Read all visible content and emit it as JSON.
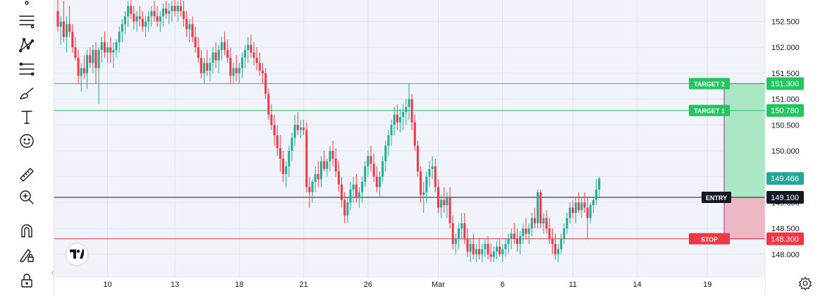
{
  "chart_data": {
    "type": "candlestick",
    "instrument_note": "",
    "price_axis": {
      "range": [
        147.8,
        152.75
      ],
      "ticks": [
        148.0,
        148.5,
        149.0,
        149.5,
        150.0,
        150.5,
        151.0,
        151.5,
        152.0,
        152.5
      ],
      "tick_labels": [
        "148.000",
        "148.500",
        "149.000",
        "149.500",
        "150.000",
        "150.500",
        "151.000",
        "151.500",
        "152.000",
        "152.500"
      ]
    },
    "time_axis": {
      "tick_labels": [
        "10",
        "13",
        "18",
        "21",
        "26",
        "Mar",
        "6",
        "11",
        "14",
        "19"
      ],
      "tick_bar_index": [
        17,
        40,
        62,
        84,
        106,
        130,
        152,
        176,
        198,
        222
      ]
    },
    "grid": true,
    "colors": {
      "up": "#22ab94",
      "down": "#f23645",
      "entry": "#131722",
      "stop": "#f23645",
      "target": "#22c55e",
      "profit_zone": "#a5e6c1",
      "loss_zone": "#eab3bf",
      "position_border": "#9c27b0",
      "current_price": "#26a69a"
    },
    "levels": [
      {
        "name": "TARGET 2",
        "price": 151.3,
        "price_label": "151.300",
        "kind": "target"
      },
      {
        "name": "TARGET 1",
        "price": 150.78,
        "price_label": "150.780",
        "kind": "target"
      },
      {
        "name": "ENTRY",
        "price": 149.1,
        "price_label": "149.100",
        "kind": "entry"
      },
      {
        "name": "STOP",
        "price": 148.3,
        "price_label": "148.300",
        "kind": "stop"
      }
    ],
    "current_price": {
      "price": 149.466,
      "label": "149.466"
    },
    "ohlc": [
      [
        152.7,
        152.95,
        152.3,
        152.4
      ],
      [
        152.4,
        152.6,
        152.05,
        152.5
      ],
      [
        152.5,
        152.9,
        152.1,
        152.2
      ],
      [
        152.2,
        152.6,
        151.9,
        152.45
      ],
      [
        152.45,
        152.8,
        152.2,
        152.3
      ],
      [
        152.3,
        152.45,
        151.9,
        152.0
      ],
      [
        152.0,
        152.2,
        151.75,
        151.8
      ],
      [
        151.8,
        151.95,
        151.3,
        151.45
      ],
      [
        151.45,
        151.7,
        151.15,
        151.6
      ],
      [
        151.6,
        151.85,
        151.4,
        151.5
      ],
      [
        151.5,
        151.95,
        151.2,
        151.85
      ],
      [
        151.85,
        152.0,
        151.6,
        151.7
      ],
      [
        151.7,
        152.05,
        151.5,
        151.95
      ],
      [
        151.95,
        152.1,
        151.3,
        151.6
      ],
      [
        151.6,
        152.0,
        150.9,
        151.95
      ],
      [
        151.95,
        152.2,
        151.7,
        152.1
      ],
      [
        152.1,
        152.3,
        151.8,
        151.9
      ],
      [
        151.9,
        152.1,
        151.7,
        152.0
      ],
      [
        152.0,
        152.2,
        151.7,
        151.9
      ],
      [
        151.9,
        152.1,
        151.6,
        151.95
      ],
      [
        151.95,
        152.15,
        151.8,
        152.1
      ],
      [
        152.1,
        152.4,
        151.9,
        152.3
      ],
      [
        152.3,
        152.55,
        152.1,
        152.45
      ],
      [
        152.45,
        152.7,
        152.25,
        152.6
      ],
      [
        152.6,
        152.9,
        152.4,
        152.8
      ],
      [
        152.8,
        152.95,
        152.55,
        152.65
      ],
      [
        152.65,
        152.8,
        152.35,
        152.5
      ],
      [
        152.5,
        152.7,
        152.3,
        152.6
      ],
      [
        152.6,
        152.8,
        152.4,
        152.55
      ],
      [
        152.55,
        152.7,
        152.3,
        152.4
      ],
      [
        152.4,
        152.6,
        152.2,
        152.5
      ],
      [
        152.5,
        152.7,
        152.3,
        152.6
      ],
      [
        152.6,
        152.8,
        152.4,
        152.7
      ],
      [
        152.7,
        152.9,
        152.5,
        152.6
      ],
      [
        152.6,
        152.8,
        152.4,
        152.5
      ],
      [
        152.5,
        152.7,
        152.3,
        152.6
      ],
      [
        152.6,
        152.85,
        152.4,
        152.75
      ],
      [
        152.75,
        152.9,
        152.55,
        152.65
      ],
      [
        152.65,
        152.85,
        152.45,
        152.7
      ],
      [
        152.7,
        152.9,
        152.5,
        152.8
      ],
      [
        152.8,
        152.95,
        152.6,
        152.7
      ],
      [
        152.7,
        152.9,
        152.5,
        152.8
      ],
      [
        152.8,
        152.95,
        152.6,
        152.7
      ],
      [
        152.7,
        152.9,
        152.4,
        152.55
      ],
      [
        152.55,
        152.7,
        152.2,
        152.35
      ],
      [
        152.35,
        152.55,
        152.1,
        152.45
      ],
      [
        152.45,
        152.6,
        152.1,
        152.2
      ],
      [
        152.2,
        152.4,
        151.9,
        152.0
      ],
      [
        152.0,
        152.2,
        151.7,
        151.8
      ],
      [
        151.8,
        151.95,
        151.4,
        151.5
      ],
      [
        151.5,
        151.8,
        151.3,
        151.7
      ],
      [
        151.7,
        151.95,
        151.45,
        151.55
      ],
      [
        151.55,
        151.8,
        151.35,
        151.7
      ],
      [
        151.7,
        152.0,
        151.5,
        151.9
      ],
      [
        151.9,
        152.1,
        151.6,
        151.75
      ],
      [
        151.75,
        152.05,
        151.5,
        151.95
      ],
      [
        151.95,
        152.2,
        151.75,
        152.1
      ],
      [
        152.1,
        152.3,
        151.85,
        151.95
      ],
      [
        151.95,
        152.15,
        151.7,
        151.8
      ],
      [
        151.8,
        152.0,
        151.3,
        151.45
      ],
      [
        151.45,
        151.7,
        151.3,
        151.6
      ],
      [
        151.6,
        151.85,
        151.35,
        151.5
      ],
      [
        151.5,
        151.7,
        151.3,
        151.6
      ],
      [
        151.6,
        151.9,
        151.4,
        151.8
      ],
      [
        151.8,
        152.05,
        151.6,
        151.95
      ],
      [
        151.95,
        152.2,
        151.7,
        152.05
      ],
      [
        152.05,
        152.25,
        151.8,
        151.9
      ],
      [
        151.9,
        152.1,
        151.65,
        151.8
      ],
      [
        151.8,
        152.0,
        151.55,
        151.7
      ],
      [
        151.7,
        151.9,
        151.45,
        151.55
      ],
      [
        151.55,
        151.7,
        151.3,
        151.5
      ],
      [
        151.5,
        151.6,
        151.0,
        151.1
      ],
      [
        151.1,
        151.2,
        150.6,
        150.7
      ],
      [
        150.7,
        150.9,
        150.4,
        150.5
      ],
      [
        150.5,
        150.7,
        150.1,
        150.3
      ],
      [
        150.3,
        150.5,
        149.9,
        150.05
      ],
      [
        150.05,
        150.3,
        149.6,
        149.85
      ],
      [
        149.85,
        150.0,
        149.4,
        149.55
      ],
      [
        149.55,
        149.8,
        149.3,
        149.7
      ],
      [
        149.7,
        150.1,
        149.5,
        150.0
      ],
      [
        150.0,
        150.35,
        149.8,
        150.25
      ],
      [
        150.25,
        150.7,
        150.1,
        150.5
      ],
      [
        150.5,
        150.75,
        150.3,
        150.4
      ],
      [
        150.4,
        150.6,
        150.25,
        150.45
      ],
      [
        150.45,
        150.6,
        150.3,
        150.4
      ],
      [
        150.4,
        150.55,
        149.2,
        149.3
      ],
      [
        149.3,
        149.5,
        148.9,
        149.2
      ],
      [
        149.2,
        149.45,
        149.0,
        149.4
      ],
      [
        149.4,
        149.7,
        149.2,
        149.55
      ],
      [
        149.55,
        149.8,
        149.3,
        149.45
      ],
      [
        149.45,
        149.9,
        149.3,
        149.8
      ],
      [
        149.8,
        150.0,
        149.6,
        149.65
      ],
      [
        149.65,
        149.85,
        149.5,
        149.8
      ],
      [
        149.8,
        150.1,
        149.6,
        150.0
      ],
      [
        150.0,
        150.2,
        149.7,
        149.85
      ],
      [
        149.85,
        150.05,
        149.5,
        149.6
      ],
      [
        149.6,
        149.8,
        149.2,
        149.35
      ],
      [
        149.35,
        149.5,
        148.9,
        149.05
      ],
      [
        149.05,
        149.2,
        148.6,
        148.75
      ],
      [
        148.75,
        149.1,
        148.6,
        149.0
      ],
      [
        149.0,
        149.4,
        148.85,
        149.25
      ],
      [
        149.25,
        149.5,
        149.0,
        149.35
      ],
      [
        149.35,
        149.55,
        149.0,
        149.1
      ],
      [
        149.1,
        149.3,
        148.9,
        149.2
      ],
      [
        149.2,
        149.5,
        149.0,
        149.4
      ],
      [
        149.4,
        149.8,
        149.3,
        149.7
      ],
      [
        149.7,
        150.0,
        149.5,
        149.9
      ],
      [
        149.9,
        150.1,
        149.6,
        149.75
      ],
      [
        149.75,
        149.95,
        149.4,
        149.5
      ],
      [
        149.5,
        149.7,
        149.2,
        149.3
      ],
      [
        149.3,
        149.6,
        149.1,
        149.5
      ],
      [
        149.5,
        149.9,
        149.4,
        149.8
      ],
      [
        149.8,
        150.2,
        149.6,
        150.1
      ],
      [
        150.1,
        150.4,
        149.9,
        150.3
      ],
      [
        150.3,
        150.6,
        150.1,
        150.5
      ],
      [
        150.5,
        150.85,
        150.3,
        150.7
      ],
      [
        150.7,
        150.9,
        150.4,
        150.55
      ],
      [
        150.55,
        150.8,
        150.35,
        150.65
      ],
      [
        150.65,
        150.9,
        150.4,
        150.75
      ],
      [
        150.75,
        151.0,
        150.5,
        150.85
      ],
      [
        150.85,
        151.3,
        150.6,
        151.0
      ],
      [
        151.0,
        151.1,
        150.4,
        150.55
      ],
      [
        150.55,
        150.7,
        150.0,
        150.1
      ],
      [
        150.1,
        150.2,
        149.5,
        149.6
      ],
      [
        149.6,
        149.7,
        149.0,
        149.15
      ],
      [
        149.15,
        149.4,
        148.8,
        149.2
      ],
      [
        149.2,
        149.6,
        149.0,
        149.5
      ],
      [
        149.5,
        149.8,
        149.3,
        149.65
      ],
      [
        149.65,
        149.9,
        149.45,
        149.7
      ],
      [
        149.7,
        149.85,
        149.2,
        149.3
      ],
      [
        149.3,
        149.45,
        148.8,
        148.9
      ],
      [
        148.9,
        149.15,
        148.7,
        149.05
      ],
      [
        149.05,
        149.3,
        148.8,
        148.95
      ],
      [
        148.95,
        149.2,
        148.7,
        149.1
      ],
      [
        149.1,
        149.3,
        148.5,
        148.6
      ],
      [
        148.6,
        148.75,
        148.1,
        148.2
      ],
      [
        148.2,
        148.4,
        148.0,
        148.3
      ],
      [
        148.3,
        148.6,
        148.1,
        148.5
      ],
      [
        148.5,
        148.8,
        148.3,
        148.6
      ],
      [
        148.6,
        148.8,
        148.2,
        148.3
      ],
      [
        148.3,
        148.5,
        147.95,
        148.05
      ],
      [
        148.05,
        148.3,
        147.85,
        148.2
      ],
      [
        148.2,
        148.4,
        147.9,
        148.0
      ],
      [
        148.0,
        148.2,
        147.85,
        148.1
      ],
      [
        148.1,
        148.3,
        147.9,
        148.0
      ],
      [
        148.0,
        148.2,
        147.85,
        148.1
      ],
      [
        148.1,
        148.3,
        147.95,
        148.2
      ],
      [
        148.2,
        148.35,
        147.9,
        148.0
      ],
      [
        148.0,
        148.2,
        147.85,
        147.95
      ],
      [
        147.95,
        148.15,
        147.85,
        148.05
      ],
      [
        148.05,
        148.25,
        147.9,
        148.15
      ],
      [
        148.15,
        148.3,
        147.95,
        148.0
      ],
      [
        148.0,
        148.2,
        147.85,
        148.1
      ],
      [
        148.1,
        148.3,
        147.95,
        148.2
      ],
      [
        148.2,
        148.4,
        148.0,
        148.3
      ],
      [
        148.3,
        148.5,
        148.1,
        148.4
      ],
      [
        148.4,
        148.6,
        148.2,
        148.3
      ],
      [
        148.3,
        148.5,
        148.05,
        148.2
      ],
      [
        148.2,
        148.45,
        148.0,
        148.35
      ],
      [
        148.35,
        148.6,
        148.2,
        148.5
      ],
      [
        148.5,
        148.7,
        148.3,
        148.4
      ],
      [
        148.4,
        148.6,
        148.2,
        148.5
      ],
      [
        148.5,
        148.8,
        148.35,
        148.7
      ],
      [
        148.7,
        148.9,
        148.5,
        148.6
      ],
      [
        148.6,
        149.25,
        148.5,
        149.2
      ],
      [
        149.2,
        149.25,
        148.5,
        148.6
      ],
      [
        148.6,
        148.8,
        148.4,
        148.7
      ],
      [
        148.7,
        148.85,
        148.4,
        148.5
      ],
      [
        148.5,
        148.7,
        148.2,
        148.3
      ],
      [
        148.3,
        148.5,
        148.0,
        148.2
      ],
      [
        148.2,
        148.4,
        147.9,
        148.0
      ],
      [
        148.0,
        148.2,
        147.85,
        148.1
      ],
      [
        148.1,
        148.4,
        148.0,
        148.3
      ],
      [
        148.3,
        148.6,
        148.2,
        148.5
      ],
      [
        148.5,
        148.8,
        148.4,
        148.7
      ],
      [
        148.7,
        149.0,
        148.6,
        148.9
      ],
      [
        148.9,
        149.05,
        148.7,
        148.8
      ],
      [
        148.8,
        149.1,
        148.6,
        149.0
      ],
      [
        149.0,
        149.2,
        148.8,
        148.85
      ],
      [
        148.85,
        149.1,
        148.7,
        149.0
      ],
      [
        149.0,
        149.2,
        148.8,
        148.9
      ],
      [
        148.9,
        149.1,
        148.3,
        148.7
      ],
      [
        148.7,
        149.0,
        148.6,
        148.95
      ],
      [
        148.95,
        149.1,
        148.8,
        149.05
      ],
      [
        149.05,
        149.45,
        148.95,
        149.25
      ],
      [
        149.25,
        149.5,
        149.1,
        149.466
      ]
    ]
  },
  "toolbar": {
    "tools": [
      "cursor-icon",
      "trend-lines-icon",
      "pattern-icon",
      "fib-icon",
      "brush-icon",
      "text-icon",
      "emoji-icon",
      "ruler-icon",
      "zoom-icon",
      "magnet-icon",
      "lock-drawing-icon",
      "lock-icon"
    ]
  },
  "logo": {
    "icon": "tradingview-logo-icon"
  }
}
